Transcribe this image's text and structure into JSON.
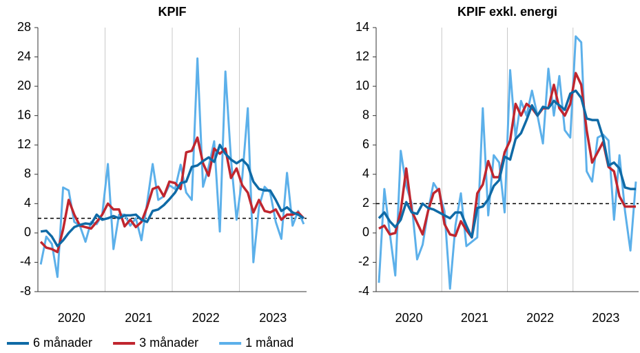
{
  "chart_data": [
    {
      "type": "line",
      "title": "KPIF",
      "categories": [
        "2020",
        null,
        null,
        null,
        null,
        null,
        null,
        null,
        null,
        null,
        null,
        null,
        "2021",
        null,
        null,
        null,
        null,
        null,
        null,
        null,
        null,
        null,
        null,
        null,
        "2022",
        null,
        null,
        null,
        null,
        null,
        null,
        null,
        null,
        null,
        null,
        null,
        "2023",
        null,
        null,
        null,
        null,
        null,
        null,
        null,
        null,
        null,
        null,
        null
      ],
      "series": [
        {
          "name": "6 månader",
          "color": "#0f6aa6",
          "values": [
            0.2,
            0.3,
            -0.5,
            -1.8,
            -1.0,
            0,
            0.8,
            1.1,
            1.3,
            1.2,
            2.5,
            1.8,
            2.0,
            2.3,
            2.0,
            2.4,
            2.4,
            2.5,
            1.8,
            1.5,
            3.0,
            3.2,
            3.8,
            4.6,
            5.5,
            6.8,
            7.0,
            9.0,
            9.2,
            9.8,
            10.3,
            9.7,
            12.0,
            10.8,
            10.0,
            9.5,
            10.0,
            9.2,
            7.0,
            6.0,
            5.8,
            5.8,
            4.5,
            3.0,
            3.5,
            2.8,
            2.5,
            2.0
          ]
        },
        {
          "name": "3 månader",
          "color": "#c0262f",
          "values": [
            -1.2,
            -2,
            -2.2,
            -2.6,
            0.5,
            4.5,
            2.5,
            1.0,
            0.8,
            0.6,
            1.5,
            2.5,
            4.0,
            3.2,
            3.2,
            0.9,
            1.8,
            0.8,
            1.5,
            3.5,
            6.0,
            6.3,
            5.0,
            7.0,
            6.8,
            6.0,
            11.0,
            11.2,
            13.0,
            9.5,
            7.8,
            11.5,
            10.8,
            11.5,
            7.5,
            8.8,
            6.5,
            5.5,
            2.8,
            4.5,
            3.0,
            2.8,
            3.2,
            1.8,
            2.5,
            2.5,
            2.8,
            2.0
          ]
        },
        {
          "name": "1 månad",
          "color": "#5cb0ea",
          "values": [
            -4.3,
            -0.5,
            -1.5,
            -6,
            6.2,
            5.8,
            1.5,
            1.0,
            -1.2,
            1.5,
            1.2,
            2.5,
            9.4,
            -2.2,
            2.5,
            2.5,
            1.0,
            2.0,
            -1.0,
            4.0,
            9.4,
            4.5,
            5.0,
            6.5,
            6.0,
            9.3,
            5.5,
            4.5,
            23.8,
            6.3,
            9.0,
            12.5,
            0.2,
            22.0,
            10.0,
            1.8,
            7.5,
            17.0,
            -4.0,
            3.5,
            6.3,
            5.5,
            1.5,
            -0.8,
            8.2,
            1.0,
            3.0,
            1.2
          ]
        }
      ],
      "ylim": [
        -8,
        28
      ],
      "yticks": [
        -8,
        -4,
        0,
        4,
        8,
        12,
        16,
        20,
        24,
        28
      ],
      "reference_line": 2
    },
    {
      "type": "line",
      "title": "KPIF exkl. energi",
      "categories": [
        "2020",
        null,
        null,
        null,
        null,
        null,
        null,
        null,
        null,
        null,
        null,
        null,
        "2021",
        null,
        null,
        null,
        null,
        null,
        null,
        null,
        null,
        null,
        null,
        null,
        "2022",
        null,
        null,
        null,
        null,
        null,
        null,
        null,
        null,
        null,
        null,
        null,
        "2023",
        null,
        null,
        null,
        null,
        null,
        null,
        null,
        null,
        null,
        null,
        null
      ],
      "series": [
        {
          "color": "#0f6aa6",
          "values": [
            1.0,
            1.4,
            0.8,
            0.4,
            0.9,
            2.1,
            1.4,
            1.3,
            2.0,
            1.7,
            1.6,
            1.4,
            1.2,
            1.0,
            1.4,
            1.4,
            0.5,
            -0.3,
            1.7,
            1.8,
            2.3,
            3.2,
            3.6,
            5.2,
            5.0,
            6.4,
            6.8,
            7.7,
            8.7,
            8.0,
            8.6,
            8.5,
            9.0,
            8.7,
            8.4,
            9.5,
            9.7,
            9.2,
            7.8,
            7.7,
            7.7,
            6.5,
            4.6,
            4.8,
            4.4,
            3.1,
            3.0,
            3.0
          ]
        },
        {
          "color": "#c0262f",
          "values": [
            0.3,
            0.5,
            -0.1,
            0,
            1.5,
            4.4,
            1.5,
            0.7,
            -0.1,
            1.5,
            2.7,
            3.0,
            0.6,
            -0.1,
            -0.2,
            0.8,
            0.2,
            -0.3,
            2.7,
            3.3,
            4.9,
            3.8,
            3.8,
            5.5,
            6.3,
            8.8,
            8.0,
            8.8,
            8.5,
            8.0,
            8.5,
            8.5,
            10.1,
            8.5,
            8.0,
            8.8,
            10.9,
            10.1,
            7.0,
            4.8,
            5.5,
            6.2,
            4.5,
            4.2,
            2.5,
            1.8,
            1.8,
            1.8
          ]
        },
        {
          "color": "#5cb0ea",
          "values": [
            -3.4,
            3.0,
            0,
            -2.9,
            5.6,
            3.2,
            2.0,
            -1.8,
            -0.8,
            1.5,
            3.4,
            2.8,
            1.5,
            -3.8,
            0.5,
            2.7,
            -0.9,
            -0.6,
            -0.3,
            8.5,
            1.2,
            5.3,
            4.8,
            1.4,
            11.1,
            6.5,
            9.0,
            8.0,
            9.7,
            8.0,
            6.1,
            11.2,
            8.0,
            10.7,
            7.0,
            6.5,
            13.4,
            13.0,
            4.2,
            3.5,
            6.5,
            6.7,
            6.3,
            0.9,
            5.3,
            1.5,
            -1.2,
            3.5
          ]
        }
      ],
      "ylim": [
        -4,
        14
      ],
      "yticks": [
        -4,
        -2,
        0,
        2,
        4,
        6,
        8,
        10,
        12,
        14
      ],
      "reference_line": 2
    }
  ]
}
